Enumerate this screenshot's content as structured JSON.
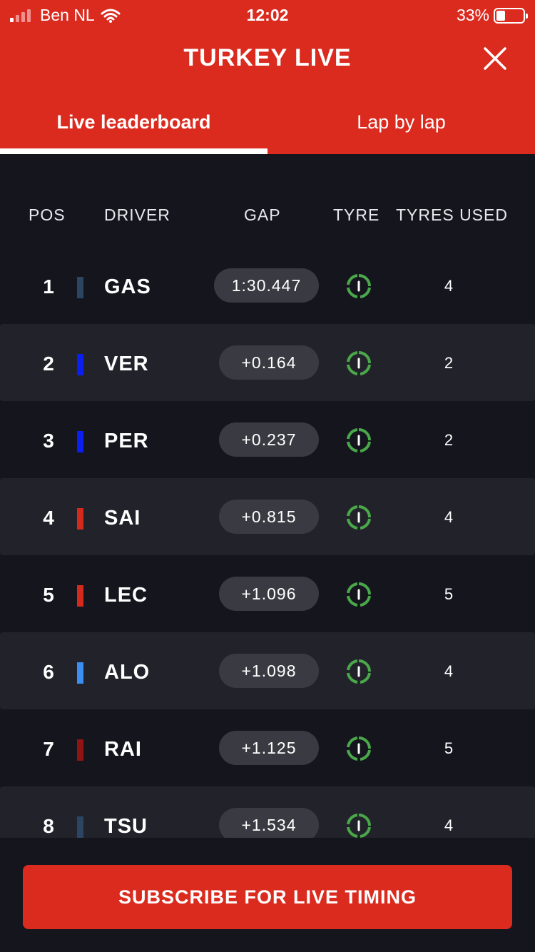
{
  "status_bar": {
    "carrier": "Ben NL",
    "time": "12:02",
    "battery": "33%",
    "battery_level": 0.33
  },
  "header": {
    "title": "TURKEY LIVE",
    "close_icon": "close-icon"
  },
  "tabs": [
    {
      "label": "Live leaderboard",
      "active": true
    },
    {
      "label": "Lap by lap",
      "active": false
    }
  ],
  "table": {
    "headers": {
      "pos": "POS",
      "driver": "DRIVER",
      "gap": "GAP",
      "tyre": "TYRE",
      "tyres_used": "TYRES USED"
    },
    "rows": [
      {
        "pos": "1",
        "driver": "GAS",
        "gap": "1:30.447",
        "tyre": "intermediate",
        "tyres_used": "4",
        "team_color": "#2b4562"
      },
      {
        "pos": "2",
        "driver": "VER",
        "gap": "+0.164",
        "tyre": "intermediate",
        "tyres_used": "2",
        "team_color": "#0b1ff0"
      },
      {
        "pos": "3",
        "driver": "PER",
        "gap": "+0.237",
        "tyre": "intermediate",
        "tyres_used": "2",
        "team_color": "#0b1ff0"
      },
      {
        "pos": "4",
        "driver": "SAI",
        "gap": "+0.815",
        "tyre": "intermediate",
        "tyres_used": "4",
        "team_color": "#d42a1e"
      },
      {
        "pos": "5",
        "driver": "LEC",
        "gap": "+1.096",
        "tyre": "intermediate",
        "tyres_used": "5",
        "team_color": "#d42a1e"
      },
      {
        "pos": "6",
        "driver": "ALO",
        "gap": "+1.098",
        "tyre": "intermediate",
        "tyres_used": "4",
        "team_color": "#3a8ff0"
      },
      {
        "pos": "7",
        "driver": "RAI",
        "gap": "+1.125",
        "tyre": "intermediate",
        "tyres_used": "5",
        "team_color": "#8f1515"
      },
      {
        "pos": "8",
        "driver": "TSU",
        "gap": "+1.534",
        "tyre": "intermediate",
        "tyres_used": "4",
        "team_color": "#2b4562"
      }
    ]
  },
  "colors": {
    "brand_red": "#db2b1f",
    "background": "#15151e",
    "row_alt": "#22232a",
    "gap_pill": "#3a3b42",
    "tyre_green": "#4aa84a"
  },
  "footer": {
    "subscribe_label": "SUBSCRIBE FOR LIVE TIMING"
  }
}
